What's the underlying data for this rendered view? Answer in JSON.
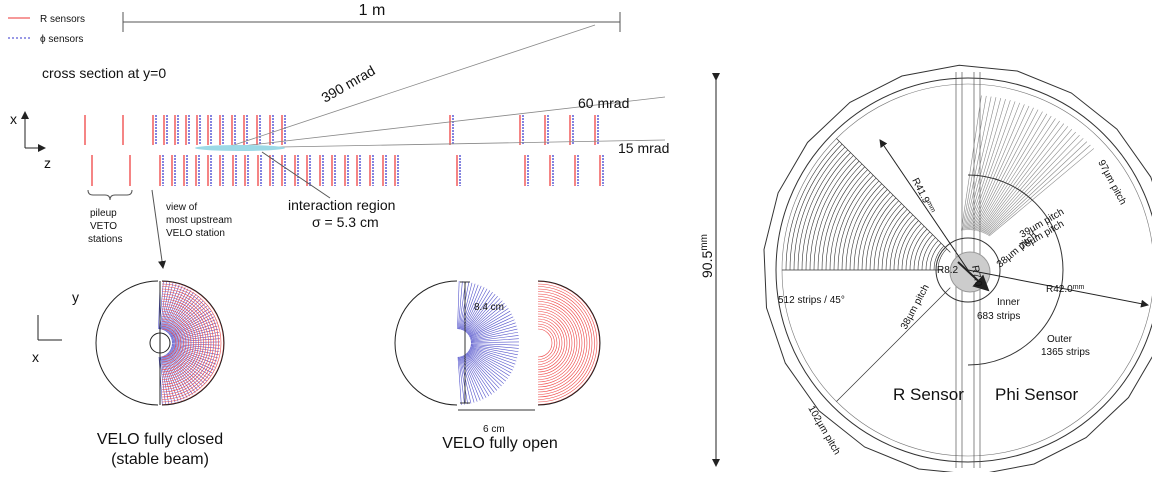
{
  "legend": {
    "r_sensors": "R sensors",
    "phi_sensors": "ϕ sensors"
  },
  "scale": "1 m",
  "cross_section": {
    "title": "cross section at y=0",
    "axis_x": "x",
    "axis_z": "z",
    "angles": [
      "390 mrad",
      "60 mrad",
      "15 mrad"
    ],
    "pileup": [
      "pileup",
      "VETO",
      "stations"
    ],
    "view": [
      "view of",
      "most upstream",
      "VELO station"
    ],
    "interaction": [
      "interaction region",
      "σ = 5.3 cm"
    ]
  },
  "stations": {
    "axis_y": "y",
    "axis_x": "x",
    "height": "8.4 cm",
    "gap": "6 cm",
    "closed": [
      "VELO fully closed",
      "(stable beam)"
    ],
    "open": "VELO fully open"
  },
  "sensor": {
    "diameter": {
      "value": "90.5",
      "unit": "mm"
    },
    "r_outer": {
      "value": "R41.9",
      "unit": "mm"
    },
    "phi_outer": {
      "value": "R42.0",
      "unit": "mm"
    },
    "pitch_97": "97µm pitch",
    "pitch_39": "39µm pitch",
    "pitch_78": "78µm pitch",
    "pitch_38_phi": "38µm pitch",
    "r_inner_r": "R8.2",
    "r_inner_phi": "R7.0",
    "strips_r": "512 strips / 45°",
    "pitch_38_r": "38µm pitch",
    "inner": [
      "Inner",
      "683 strips"
    ],
    "outer": [
      "Outer",
      "1365 strips"
    ],
    "pitch_102": "102µm pitch",
    "r_sensor": "R Sensor",
    "phi_sensor": "Phi Sensor"
  }
}
